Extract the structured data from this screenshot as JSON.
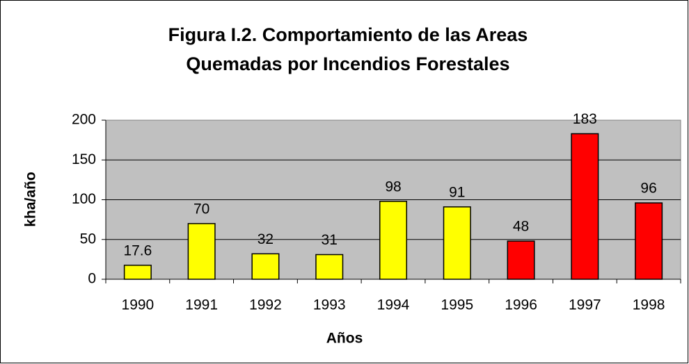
{
  "chart_data": {
    "type": "bar",
    "title": [
      "Figura I.2.  Comportamiento de las Areas",
      "Quemadas por Incendios Forestales"
    ],
    "x_label": "Años",
    "y_label": "kha/año",
    "categories": [
      "1990",
      "1991",
      "1992",
      "1993",
      "1994",
      "1995",
      "1996",
      "1997",
      "1998"
    ],
    "values": [
      17.6,
      70,
      32,
      31,
      98,
      91,
      48,
      183,
      96
    ],
    "colors": [
      "#ffff00",
      "#ffff00",
      "#ffff00",
      "#ffff00",
      "#ffff00",
      "#ffff00",
      "#ff0000",
      "#ff0000",
      "#ff0000"
    ],
    "ylim": [
      0,
      200
    ],
    "yticks": [
      0,
      50,
      100,
      150,
      200
    ],
    "grid": true
  }
}
